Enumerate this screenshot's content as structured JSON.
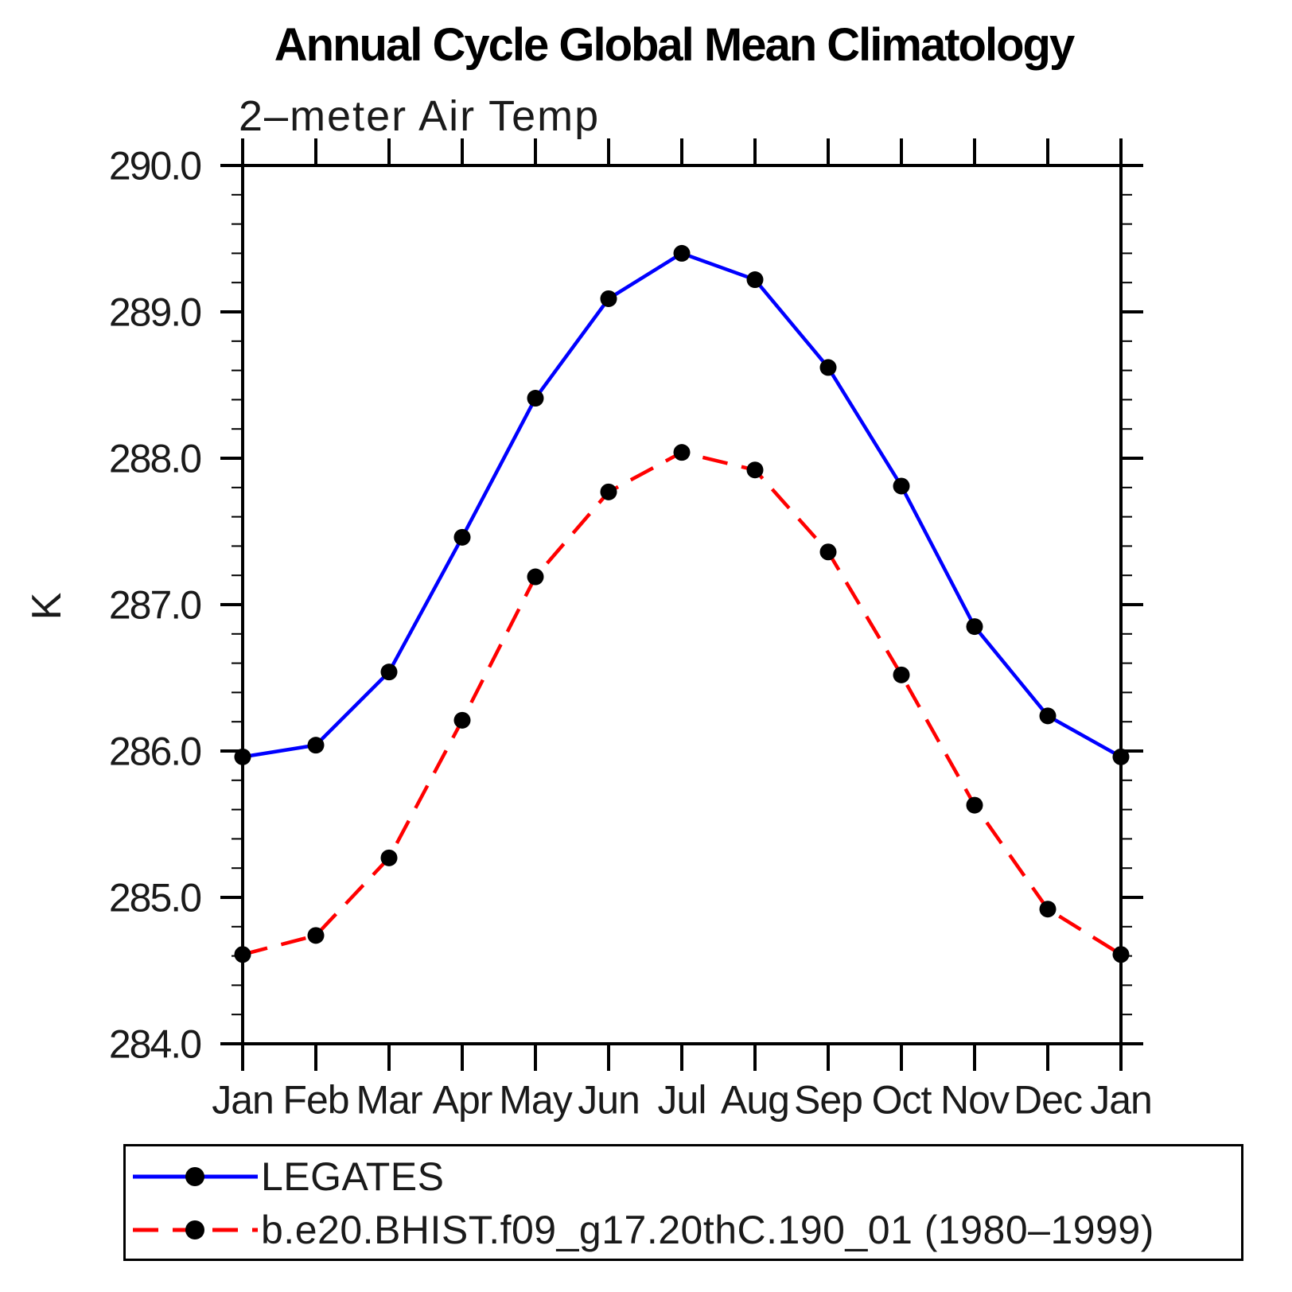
{
  "chart_data": {
    "type": "line",
    "title": "Annual Cycle Global Mean Climatology",
    "subtitle": "2–meter Air Temp",
    "ylabel": "K",
    "categories": [
      "Jan",
      "Feb",
      "Mar",
      "Apr",
      "May",
      "Jun",
      "Jul",
      "Aug",
      "Sep",
      "Oct",
      "Nov",
      "Dec",
      "Jan"
    ],
    "ylim": [
      284.0,
      290.0
    ],
    "y_major_tick_step": 1.0,
    "y_minor_tick_step": 0.2,
    "y_tick_labels": [
      "290.0",
      "289.0",
      "288.0",
      "287.0",
      "286.0",
      "285.0",
      "284.0"
    ],
    "grid": false,
    "legend_position": "bottom-left-box",
    "axis_color": "#000000",
    "marker_color": "#000000",
    "series": [
      {
        "name": "LEGATES",
        "color": "#0000ff",
        "line_style": "solid",
        "marker": "filled-circle",
        "values": [
          285.96,
          286.04,
          286.54,
          287.46,
          288.41,
          289.09,
          289.4,
          289.22,
          288.62,
          287.81,
          286.85,
          286.24,
          285.96
        ]
      },
      {
        "name": "b.e20.BHIST.f09_g17.20thC.190_01 (1980–1999)",
        "color": "#ff0000",
        "line_style": "dashed",
        "marker": "filled-circle",
        "values": [
          284.61,
          284.74,
          285.27,
          286.21,
          287.19,
          287.77,
          288.04,
          287.92,
          287.36,
          286.52,
          285.63,
          284.92,
          284.61
        ]
      }
    ]
  }
}
